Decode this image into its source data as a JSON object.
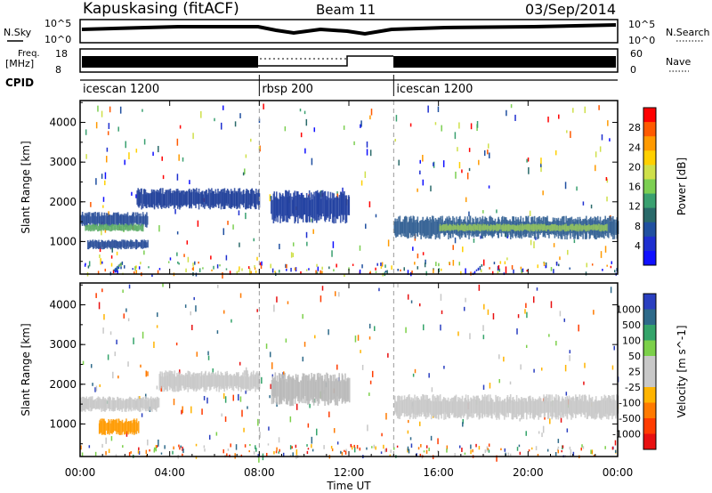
{
  "header": {
    "station": "Kapuskasing (fitACF)",
    "beam": "Beam 11",
    "date": "03/Sep/2014"
  },
  "strip": {
    "nsky_label": "N.Sky",
    "nsky_ticks": [
      "10^5",
      "10^0"
    ],
    "nsearch_label": "N.Search",
    "nsearch_ticks": [
      "10^5",
      "10^0"
    ],
    "freq_label_1": "Freq.",
    "freq_label_2": "[MHz]",
    "freq_ticks": [
      "18",
      "8"
    ],
    "nave_label": "Nave",
    "nave_ticks": [
      "60",
      "0"
    ],
    "cpid_label": "CPID",
    "modes": [
      {
        "label": "icescan 1200",
        "start_hour": 0
      },
      {
        "label": "rbsp 200",
        "start_hour": 8
      },
      {
        "label": "icescan 1200",
        "start_hour": 14
      }
    ]
  },
  "xaxis": {
    "label": "Time UT",
    "ticks": [
      "00:00",
      "04:00",
      "08:00",
      "12:00",
      "16:00",
      "20:00",
      "00:00"
    ]
  },
  "chart_data": [
    {
      "type": "heatmap",
      "ylabel": "Slant Range [km]",
      "yticks": [
        "1000",
        "2000",
        "3000",
        "4000"
      ],
      "colorbar_label": "Power [dB]",
      "colorbar_ticks": [
        "28",
        "24",
        "20",
        "16",
        "12",
        "8",
        "4"
      ],
      "colors": [
        "#ff0000",
        "#ff5a00",
        "#ff9a00",
        "#ffd000",
        "#cfe04a",
        "#7ccf52",
        "#3aa070",
        "#2a6a6a",
        "#2050a0",
        "#1e2fd0",
        "#1010ff"
      ],
      "xlim": [
        0,
        24
      ],
      "ylim": [
        180,
        4550
      ],
      "regions": [
        {
          "t0": 0.0,
          "t1": 3.0,
          "r0": 1350,
          "r1": 1750,
          "color": "#2a4f9a"
        },
        {
          "t0": 0.2,
          "t1": 2.8,
          "r0": 1250,
          "r1": 1450,
          "color": "#5fae6a"
        },
        {
          "t0": 0.3,
          "t1": 3.0,
          "r0": 800,
          "r1": 1050,
          "color": "#2a4f9a"
        },
        {
          "t0": 2.5,
          "t1": 8.0,
          "r0": 1800,
          "r1": 2350,
          "color": "#203f9a"
        },
        {
          "t0": 8.5,
          "t1": 12.0,
          "r0": 1450,
          "r1": 2300,
          "color": "#1e3ea0"
        },
        {
          "t0": 14.0,
          "t1": 24.0,
          "r0": 1050,
          "r1": 1650,
          "color": "#315f93"
        },
        {
          "t0": 16.0,
          "t1": 23.5,
          "r0": 1250,
          "r1": 1450,
          "color": "#8fbf62"
        }
      ]
    },
    {
      "type": "heatmap",
      "ylabel": "Slant Range [km]",
      "yticks": [
        "1000",
        "2000",
        "3000",
        "4000"
      ],
      "colorbar_label": "Velocity [m s^-1]",
      "colorbar_ticks": [
        "1000",
        "500",
        "100",
        "50",
        "25",
        "-25",
        "-100",
        "-500",
        "-1000"
      ],
      "colors": [
        "#2a3fc0",
        "#2e6a8a",
        "#34a46a",
        "#7cd04a",
        "#c8c8c8",
        "#c8c8c8",
        "#ffb400",
        "#ff7a00",
        "#ff3c00",
        "#e81010"
      ],
      "xlim": [
        0,
        24
      ],
      "ylim": [
        180,
        4550
      ],
      "regions": [
        {
          "t0": 0.0,
          "t1": 3.5,
          "r0": 1300,
          "r1": 1700,
          "color": "#c8c8c8"
        },
        {
          "t0": 0.8,
          "t1": 2.6,
          "r0": 700,
          "r1": 1150,
          "color": "#ff9a00"
        },
        {
          "t0": 3.5,
          "t1": 8.0,
          "r0": 1800,
          "r1": 2350,
          "color": "#c8c8c8"
        },
        {
          "t0": 8.5,
          "t1": 12.0,
          "r0": 1450,
          "r1": 2300,
          "color": "#b8b8b8"
        },
        {
          "t0": 14.0,
          "t1": 24.0,
          "r0": 1100,
          "r1": 1750,
          "color": "#c8c8c8"
        }
      ]
    }
  ]
}
